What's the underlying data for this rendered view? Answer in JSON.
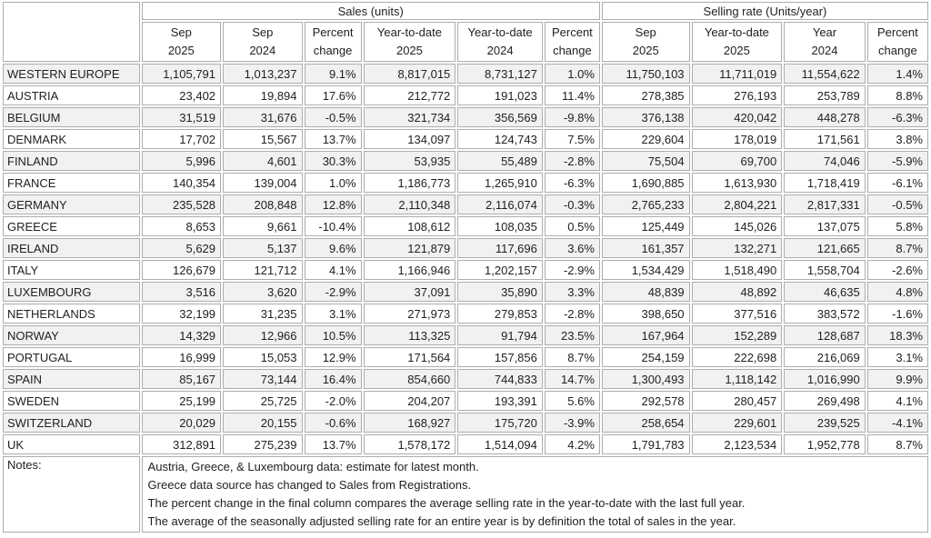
{
  "colors": {
    "row_alt_background": "#f1f1f1",
    "cell_border": "#adadad",
    "text": "#212121"
  },
  "chart_data": {
    "type": "table",
    "group_headers": [
      "Sales (units)",
      "Selling rate (Units/year)"
    ],
    "group_spans": [
      6,
      4
    ],
    "columns": [
      [
        "Sep",
        "2025"
      ],
      [
        "Sep",
        "2024"
      ],
      [
        "Percent",
        "change"
      ],
      [
        "Year-to-date",
        "2025"
      ],
      [
        "Year-to-date",
        "2024"
      ],
      [
        "Percent",
        "change"
      ],
      [
        "Sep",
        "2025"
      ],
      [
        "Year-to-date",
        "2025"
      ],
      [
        "Year",
        "2024"
      ],
      [
        "Percent",
        "change"
      ]
    ],
    "rows": [
      {
        "country": "WESTERN EUROPE",
        "values": [
          "1,105,791",
          "1,013,237",
          "9.1%",
          "8,817,015",
          "8,731,127",
          "1.0%",
          "11,750,103",
          "11,711,019",
          "11,554,622",
          "1.4%"
        ]
      },
      {
        "country": "AUSTRIA",
        "values": [
          "23,402",
          "19,894",
          "17.6%",
          "212,772",
          "191,023",
          "11.4%",
          "278,385",
          "276,193",
          "253,789",
          "8.8%"
        ]
      },
      {
        "country": "BELGIUM",
        "values": [
          "31,519",
          "31,676",
          "-0.5%",
          "321,734",
          "356,569",
          "-9.8%",
          "376,138",
          "420,042",
          "448,278",
          "-6.3%"
        ]
      },
      {
        "country": "DENMARK",
        "values": [
          "17,702",
          "15,567",
          "13.7%",
          "134,097",
          "124,743",
          "7.5%",
          "229,604",
          "178,019",
          "171,561",
          "3.8%"
        ]
      },
      {
        "country": "FINLAND",
        "values": [
          "5,996",
          "4,601",
          "30.3%",
          "53,935",
          "55,489",
          "-2.8%",
          "75,504",
          "69,700",
          "74,046",
          "-5.9%"
        ]
      },
      {
        "country": "FRANCE",
        "values": [
          "140,354",
          "139,004",
          "1.0%",
          "1,186,773",
          "1,265,910",
          "-6.3%",
          "1,690,885",
          "1,613,930",
          "1,718,419",
          "-6.1%"
        ]
      },
      {
        "country": "GERMANY",
        "values": [
          "235,528",
          "208,848",
          "12.8%",
          "2,110,348",
          "2,116,074",
          "-0.3%",
          "2,765,233",
          "2,804,221",
          "2,817,331",
          "-0.5%"
        ]
      },
      {
        "country": "GREECE",
        "values": [
          "8,653",
          "9,661",
          "-10.4%",
          "108,612",
          "108,035",
          "0.5%",
          "125,449",
          "145,026",
          "137,075",
          "5.8%"
        ]
      },
      {
        "country": "IRELAND",
        "values": [
          "5,629",
          "5,137",
          "9.6%",
          "121,879",
          "117,696",
          "3.6%",
          "161,357",
          "132,271",
          "121,665",
          "8.7%"
        ]
      },
      {
        "country": "ITALY",
        "values": [
          "126,679",
          "121,712",
          "4.1%",
          "1,166,946",
          "1,202,157",
          "-2.9%",
          "1,534,429",
          "1,518,490",
          "1,558,704",
          "-2.6%"
        ]
      },
      {
        "country": "LUXEMBOURG",
        "values": [
          "3,516",
          "3,620",
          "-2.9%",
          "37,091",
          "35,890",
          "3.3%",
          "48,839",
          "48,892",
          "46,635",
          "4.8%"
        ]
      },
      {
        "country": "NETHERLANDS",
        "values": [
          "32,199",
          "31,235",
          "3.1%",
          "271,973",
          "279,853",
          "-2.8%",
          "398,650",
          "377,516",
          "383,572",
          "-1.6%"
        ]
      },
      {
        "country": "NORWAY",
        "values": [
          "14,329",
          "12,966",
          "10.5%",
          "113,325",
          "91,794",
          "23.5%",
          "167,964",
          "152,289",
          "128,687",
          "18.3%"
        ]
      },
      {
        "country": "PORTUGAL",
        "values": [
          "16,999",
          "15,053",
          "12.9%",
          "171,564",
          "157,856",
          "8.7%",
          "254,159",
          "222,698",
          "216,069",
          "3.1%"
        ]
      },
      {
        "country": "SPAIN",
        "values": [
          "85,167",
          "73,144",
          "16.4%",
          "854,660",
          "744,833",
          "14.7%",
          "1,300,493",
          "1,118,142",
          "1,016,990",
          "9.9%"
        ]
      },
      {
        "country": "SWEDEN",
        "values": [
          "25,199",
          "25,725",
          "-2.0%",
          "204,207",
          "193,391",
          "5.6%",
          "292,578",
          "280,457",
          "269,498",
          "4.1%"
        ]
      },
      {
        "country": "SWITZERLAND",
        "values": [
          "20,029",
          "20,155",
          "-0.6%",
          "168,927",
          "175,720",
          "-3.9%",
          "258,654",
          "229,601",
          "239,525",
          "-4.1%"
        ]
      },
      {
        "country": "UK",
        "values": [
          "312,891",
          "275,239",
          "13.7%",
          "1,578,172",
          "1,514,094",
          "4.2%",
          "1,791,783",
          "2,123,534",
          "1,952,778",
          "8.7%"
        ]
      }
    ],
    "notes_label": "Notes:",
    "notes": [
      "Austria, Greece, & Luxembourg data: estimate for latest month.",
      "Greece data source has changed to Sales from Registrations.",
      "The percent change in the final column compares the average selling rate in the year-to-date with the last full year.",
      "The average of the seasonally adjusted selling rate for an entire year is by definition the total of sales in the year."
    ]
  }
}
